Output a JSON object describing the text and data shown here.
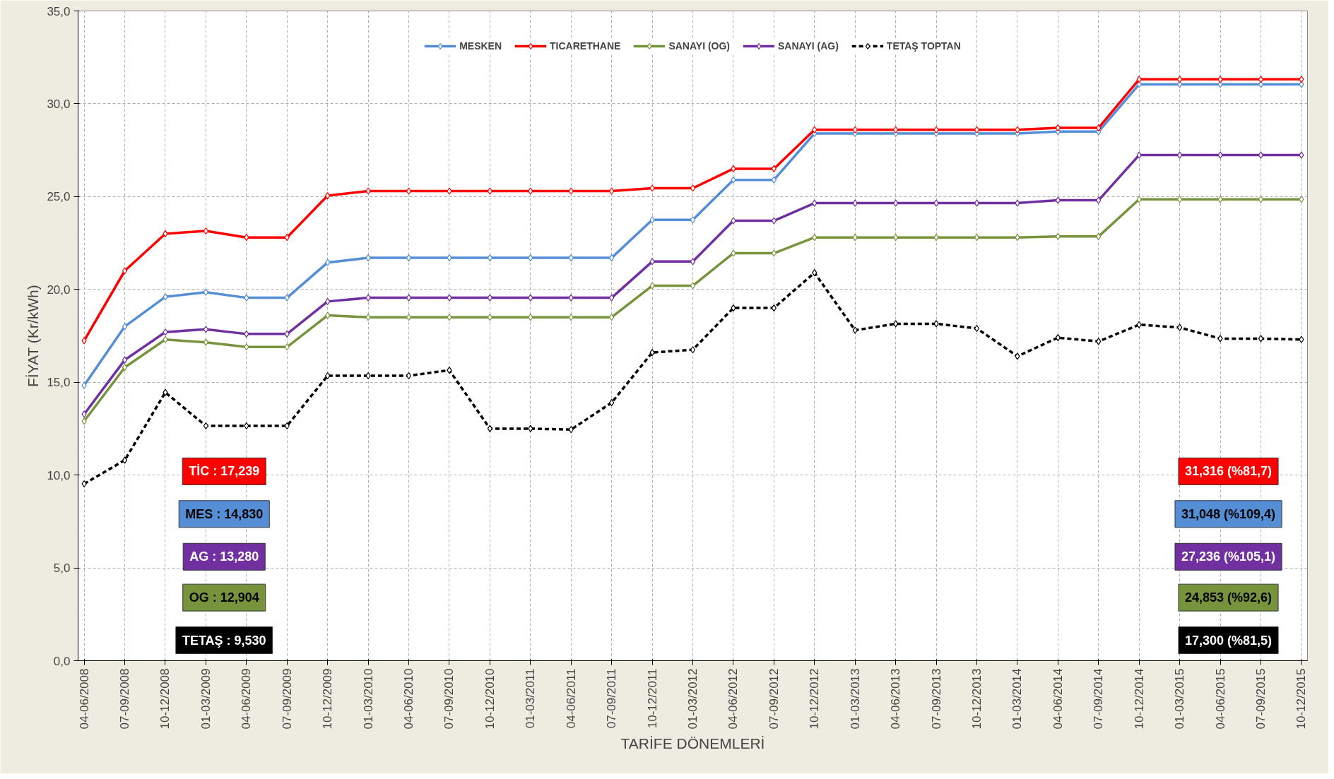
{
  "chart_data": {
    "type": "line",
    "xlabel": "TARİFE DÖNEMLERİ",
    "ylabel": "FİYAT (Kr/kWh)",
    "categories": [
      "04-06/2008",
      "07-09/2008",
      "10-12/2008",
      "01-03/2009",
      "04-06/2009",
      "07-09/2009",
      "10-12/2009",
      "01-03/2010",
      "04-06/2010",
      "07-09/2010",
      "10-12/2010",
      "01-03/2011",
      "04-06/2011",
      "07-09/2011",
      "10-12/2011",
      "01-03/2012",
      "04-06/2012",
      "07-09/2012",
      "10-12/2012",
      "01-03/2013",
      "04-06/2013",
      "07-09/2013",
      "10-12/2013",
      "01-03/2014",
      "04-06/2014",
      "07-09/2014",
      "10-12/2014",
      "01-03/2015",
      "04-06/2015",
      "07-09/2015",
      "10-12/2015"
    ],
    "series": [
      {
        "name": "MESKEN",
        "color": "#558ed5",
        "values": [
          14.83,
          18.0,
          19.6,
          19.85,
          19.55,
          19.55,
          21.45,
          21.7,
          21.7,
          21.7,
          21.7,
          21.7,
          21.7,
          21.7,
          23.75,
          23.75,
          25.9,
          25.9,
          28.4,
          28.4,
          28.4,
          28.4,
          28.4,
          28.4,
          28.5,
          28.5,
          31.048,
          31.048,
          31.048,
          31.048,
          31.048
        ]
      },
      {
        "name": "TICARETHANE",
        "color": "#ff0000",
        "values": [
          17.239,
          21.0,
          23.0,
          23.15,
          22.8,
          22.8,
          25.05,
          25.3,
          25.3,
          25.3,
          25.3,
          25.3,
          25.3,
          25.3,
          25.45,
          25.45,
          26.5,
          26.5,
          28.6,
          28.6,
          28.6,
          28.6,
          28.6,
          28.6,
          28.7,
          28.7,
          31.316,
          31.316,
          31.316,
          31.316,
          31.316
        ]
      },
      {
        "name": "SANAYI (OG)",
        "color": "#77933c",
        "values": [
          12.904,
          15.8,
          17.3,
          17.15,
          16.9,
          16.9,
          18.6,
          18.5,
          18.5,
          18.5,
          18.5,
          18.5,
          18.5,
          18.5,
          20.2,
          20.2,
          21.95,
          21.95,
          22.8,
          22.8,
          22.8,
          22.8,
          22.8,
          22.8,
          22.85,
          22.85,
          24.853,
          24.853,
          24.853,
          24.853,
          24.853
        ]
      },
      {
        "name": "SANAYI (AG)",
        "color": "#7030a0",
        "values": [
          13.28,
          16.2,
          17.7,
          17.85,
          17.6,
          17.6,
          19.35,
          19.55,
          19.55,
          19.55,
          19.55,
          19.55,
          19.55,
          19.55,
          21.5,
          21.5,
          23.7,
          23.7,
          24.65,
          24.65,
          24.65,
          24.65,
          24.65,
          24.65,
          24.8,
          24.8,
          27.236,
          27.236,
          27.236,
          27.236,
          27.236
        ]
      },
      {
        "name": "TETAŞ TOPTAN",
        "color": "#000000",
        "line_style": "dashed",
        "values": [
          9.53,
          10.8,
          14.45,
          12.65,
          12.65,
          12.65,
          15.35,
          15.35,
          15.35,
          15.65,
          12.5,
          12.5,
          12.45,
          13.9,
          16.6,
          16.75,
          19.0,
          19.0,
          20.9,
          17.8,
          18.15,
          18.15,
          17.9,
          16.4,
          17.4,
          17.2,
          18.1,
          17.95,
          17.35,
          17.35,
          17.3
        ]
      }
    ],
    "ylim": [
      0,
      35
    ],
    "yticks": [
      {
        "value": 0,
        "label": "0,0"
      },
      {
        "value": 5,
        "label": "5,0"
      },
      {
        "value": 10,
        "label": "10,0"
      },
      {
        "value": 15,
        "label": "15,0"
      },
      {
        "value": 20,
        "label": "20,0"
      },
      {
        "value": 25,
        "label": "25,0"
      },
      {
        "value": 30,
        "label": "30,0"
      },
      {
        "value": 35,
        "label": "35,0"
      }
    ],
    "annotations": [
      "TİC : 17,239",
      "MES : 14,830",
      "AG : 13,280",
      "OG : 12,904",
      "TETAŞ : 9,530",
      "31,316 (%81,7)",
      "31,048 (%109,4)",
      "27,236 (%105,1)",
      "24,853 (%92,6)",
      "17,300 (%81,5)"
    ],
    "grid": true,
    "legend": "top",
    "marker": "diamond",
    "line_style": "solid"
  }
}
